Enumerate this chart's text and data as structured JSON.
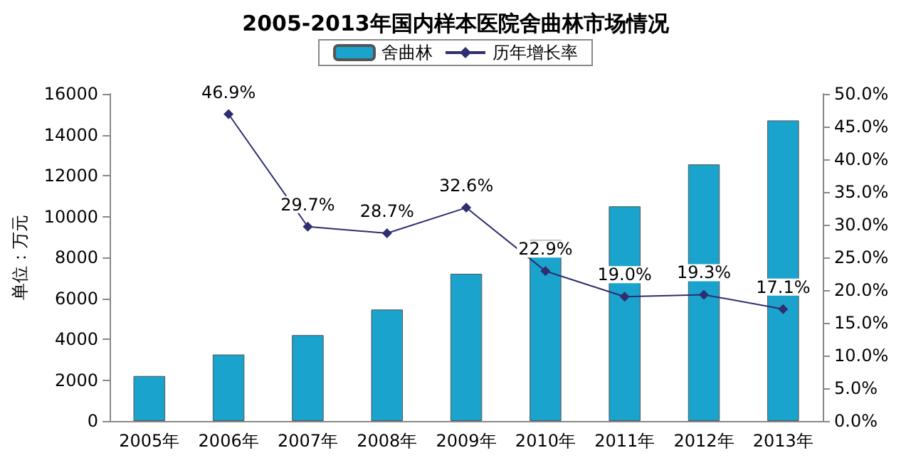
{
  "chart_data": {
    "type": "bar",
    "title": "2005-2013年国内样本医院舍曲林市场情况",
    "ylabel": "单位：万元",
    "categories": [
      "2005年",
      "2006年",
      "2007年",
      "2008年",
      "2009年",
      "2010年",
      "2011年",
      "2012年",
      "2013年"
    ],
    "series": [
      {
        "name": "舍曲林",
        "color": "#1aa3cc",
        "values": [
          2200,
          3250,
          4200,
          5450,
          7200,
          8850,
          10500,
          12550,
          14700
        ]
      },
      {
        "name": "历年增长率",
        "type": "line",
        "axis": "y2",
        "color": "#2e2e70",
        "marker": "diamond",
        "values": [
          null,
          46.9,
          29.7,
          28.7,
          32.6,
          22.9,
          19.0,
          19.3,
          17.1
        ],
        "value_labels": [
          null,
          "46.9%",
          "29.7%",
          "28.7%",
          "32.6%",
          "22.9%",
          "19.0%",
          "19.3%",
          "17.1%"
        ]
      }
    ],
    "ylim": [
      0,
      16000
    ],
    "yticks": [
      0,
      2000,
      4000,
      6000,
      8000,
      10000,
      12000,
      14000,
      16000
    ],
    "y2lim": [
      0,
      50
    ],
    "y2ticks": [
      {
        "value": 0,
        "label": "0.0%"
      },
      {
        "value": 5,
        "label": "5.0%"
      },
      {
        "value": 10,
        "label": "10.0%"
      },
      {
        "value": 15,
        "label": "15.0%"
      },
      {
        "value": 20,
        "label": "20.0%"
      },
      {
        "value": 25,
        "label": "25.0%"
      },
      {
        "value": 30,
        "label": "30.0%"
      },
      {
        "value": 35,
        "label": "35.0%"
      },
      {
        "value": 40,
        "label": "40.0%"
      },
      {
        "value": 45,
        "label": "45.0%"
      },
      {
        "value": 50,
        "label": "50.0%"
      }
    ],
    "grid": false,
    "legend": "top"
  }
}
